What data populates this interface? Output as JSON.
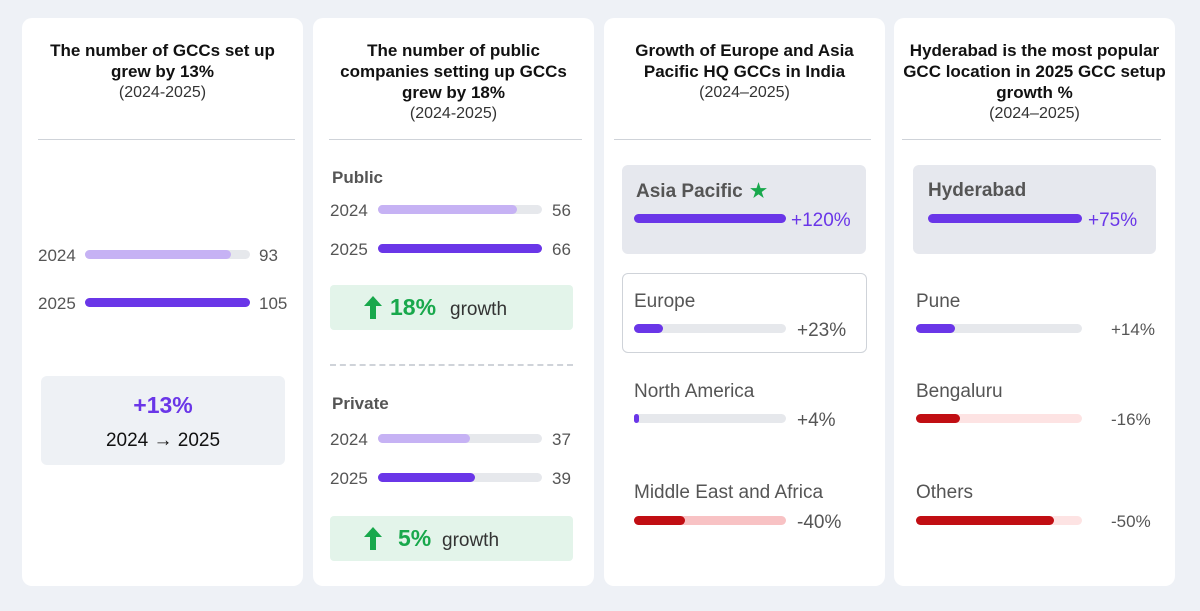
{
  "colors": {
    "accent": "#6a36e8",
    "accent_light": "#c6b2f4",
    "track": "#e6e8ec",
    "negative": "#c10e13",
    "negative_track": "#fde3e3",
    "negative_track_strong": "#f8c2c4",
    "growth_green": "#18a84c"
  },
  "panel1": {
    "title": "The number of GCCs set up grew by 13%",
    "subtitle": "(2024-2025)",
    "summary_value": "+13%",
    "summary_caption": "2024 → 2025"
  },
  "panel2": {
    "title": "The number of public companies setting up GCCs grew by 18%",
    "subtitle": "(2024-2025)",
    "public_label": "Public",
    "public_growth_value": "18%",
    "private_label": "Private",
    "private_growth_value": "5%",
    "growth_word": "growth"
  },
  "panel3": {
    "title": "Growth of Europe and Asia Pacific HQ GCCs in India",
    "subtitle": "(2024–2025)",
    "star": "★"
  },
  "panel4": {
    "title": "Hyderabad is the most popular GCC location in 2025 GCC setup growth %",
    "subtitle": "(2024–2025)"
  },
  "chart_data": [
    {
      "type": "bar",
      "orientation": "horizontal",
      "categories": [
        "2024",
        "2025"
      ],
      "values": [
        93,
        105
      ],
      "value_labels": [
        "93",
        "105"
      ],
      "xlim": [
        0,
        105
      ]
    },
    {
      "type": "bar",
      "orientation": "horizontal",
      "groups": [
        {
          "name": "Public",
          "categories": [
            "2024",
            "2025"
          ],
          "values": [
            56,
            66
          ],
          "value_labels": [
            "56",
            "66"
          ]
        },
        {
          "name": "Private",
          "categories": [
            "2024",
            "2025"
          ],
          "values": [
            37,
            39
          ],
          "value_labels": [
            "37",
            "39"
          ]
        }
      ],
      "xlim": [
        0,
        66
      ]
    },
    {
      "type": "bar",
      "orientation": "horizontal",
      "categories": [
        "Asia Pacific",
        "Europe",
        "North America",
        "Middle East and Africa"
      ],
      "values": [
        120,
        23,
        4,
        -40
      ],
      "value_labels": [
        "+120%",
        "+23%",
        "+4%",
        "-40%"
      ],
      "xlim": [
        0,
        120
      ]
    },
    {
      "type": "bar",
      "orientation": "horizontal",
      "categories": [
        "Hyderabad",
        "Pune",
        "Bengaluru",
        "Others"
      ],
      "values": [
        75,
        14,
        -16,
        -50
      ],
      "value_labels": [
        "+75%",
        "+14%",
        "-16%",
        "-50%"
      ],
      "xlim": [
        0,
        60
      ]
    }
  ]
}
